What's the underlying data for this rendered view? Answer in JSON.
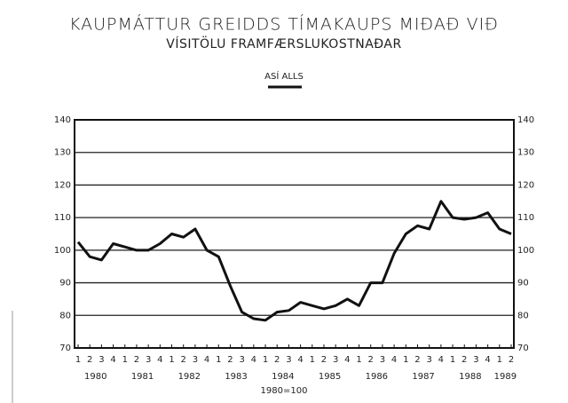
{
  "chart_data": {
    "type": "line",
    "title": "KAUPMÁTTUR GREIDDS TÍMAKAUPS MIÐAÐ VIÐ",
    "subtitle": "VÍSITÖLU FRAMFÆRSLUKOSTNAÐAR",
    "note": "1980=100",
    "categories": [
      "1",
      "2",
      "3",
      "4",
      "1",
      "2",
      "3",
      "4",
      "1",
      "2",
      "3",
      "4",
      "1",
      "2",
      "3",
      "4",
      "1",
      "2",
      "3",
      "4",
      "1",
      "2",
      "3",
      "4",
      "1",
      "2",
      "3",
      "4",
      "1",
      "2",
      "3",
      "4",
      "1",
      "2",
      "3",
      "4",
      "1",
      "2"
    ],
    "year_labels": [
      "1980",
      "1981",
      "1982",
      "1983",
      "1984",
      "1985",
      "1986",
      "1987",
      "1988",
      "1989"
    ],
    "series": [
      {
        "name": "ASÍ ALLS",
        "color": "#111111",
        "values": [
          102.5,
          98,
          97,
          102,
          101,
          100,
          100,
          102,
          105,
          104,
          106.5,
          100,
          98,
          89,
          81,
          79,
          78.5,
          81,
          81.5,
          84,
          83,
          82,
          83,
          85,
          83,
          90,
          90,
          99,
          105,
          107.5,
          106.5,
          115,
          110,
          109.5,
          110,
          111.5,
          106.5,
          105
        ]
      }
    ],
    "ylim": [
      70,
      140
    ],
    "yticks": [
      70,
      80,
      90,
      100,
      110,
      120,
      130,
      140
    ],
    "grid": true
  }
}
